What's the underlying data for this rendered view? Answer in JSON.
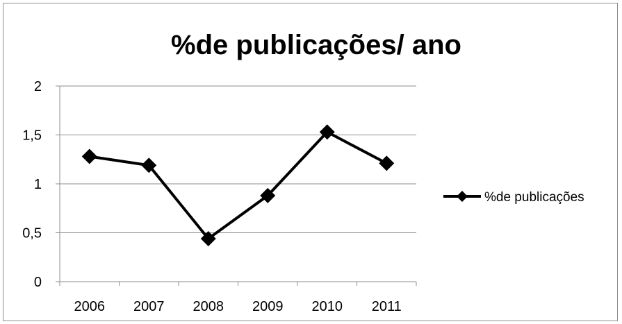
{
  "chart_data": {
    "type": "line",
    "title": "%de publicações/ ano",
    "xlabel": "",
    "ylabel": "",
    "categories": [
      "2006",
      "2007",
      "2008",
      "2009",
      "2010",
      "2011"
    ],
    "series": [
      {
        "name": "%de publicações",
        "values": [
          1.28,
          1.19,
          0.44,
          0.88,
          1.53,
          1.21
        ],
        "color": "#000000"
      }
    ],
    "ylim": [
      0,
      2
    ],
    "yticks": [
      0,
      0.5,
      1,
      1.5,
      2
    ],
    "ytick_labels": [
      "0",
      "0,5",
      "1",
      "1,5",
      "2"
    ],
    "grid": true,
    "legend_position": "right",
    "marker": "diamond"
  }
}
